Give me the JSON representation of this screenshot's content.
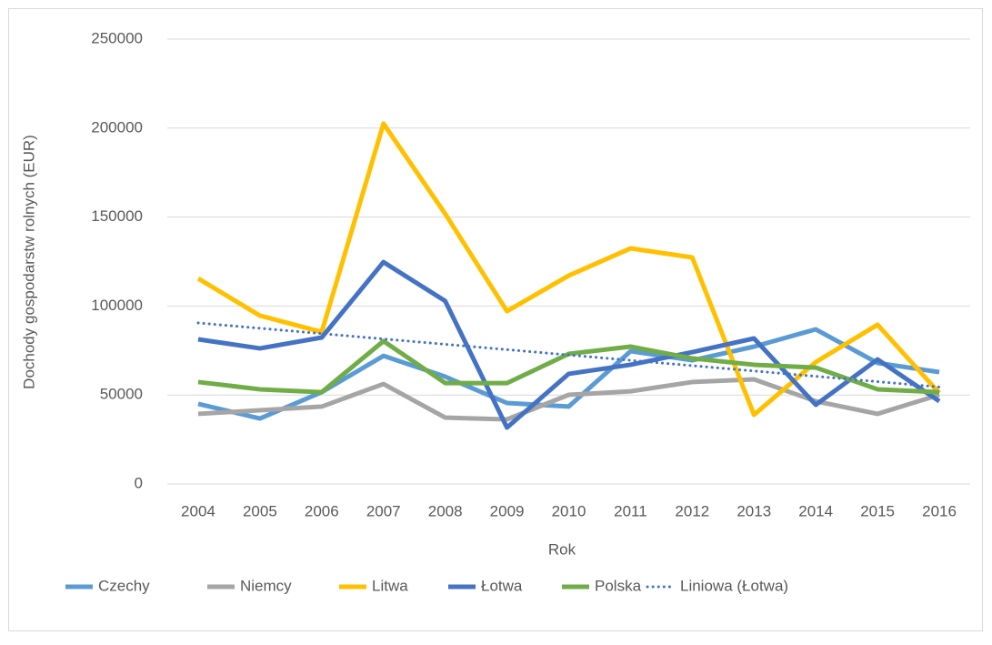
{
  "chart_data": {
    "type": "line",
    "y_label": "Dochody gospodarstw rolnych (EUR)",
    "x_label": "Rok",
    "categories": [
      "2004",
      "2005",
      "2006",
      "2007",
      "2008",
      "2009",
      "2010",
      "2011",
      "2012",
      "2013",
      "2014",
      "2015",
      "2016"
    ],
    "series": [
      {
        "name": "Czechy",
        "color": "#5b9bd5",
        "values": [
          45000,
          36800,
          51600,
          72000,
          60300,
          45500,
          43500,
          74600,
          69500,
          77200,
          86900,
          68000,
          62900
        ]
      },
      {
        "name": "Niemcy",
        "color": "#a5a5a5",
        "values": [
          39400,
          41400,
          43500,
          56200,
          37300,
          36300,
          50100,
          52100,
          57300,
          58800,
          46500,
          39400,
          50100
        ]
      },
      {
        "name": "Litwa",
        "color": "#ffc000",
        "values": [
          115500,
          94600,
          85400,
          202500,
          151800,
          97100,
          117100,
          132400,
          127300,
          38900,
          68500,
          89500,
          51100
        ]
      },
      {
        "name": "Łotwa",
        "color": "#4472c4",
        "values": [
          81300,
          76200,
          82300,
          124700,
          102800,
          31700,
          61900,
          67000,
          74100,
          81800,
          44500,
          70000,
          46500
        ]
      },
      {
        "name": "Polska",
        "color": "#70ad47",
        "values": [
          57300,
          53200,
          51600,
          80300,
          56700,
          56700,
          73100,
          77200,
          70600,
          67000,
          65400,
          53200,
          51600
        ]
      },
      {
        "name": "Liniowa (Łotwa)",
        "color": "#4472c4",
        "dotted": true,
        "values": [
          90500,
          87500,
          84500,
          81500,
          78500,
          75500,
          72500,
          69500,
          66500,
          63500,
          60500,
          57500,
          54500
        ]
      }
    ],
    "ylim": [
      0,
      250000
    ],
    "yticks": [
      0,
      50000,
      100000,
      150000,
      200000,
      250000
    ],
    "grid": true,
    "legend": "bottom"
  }
}
